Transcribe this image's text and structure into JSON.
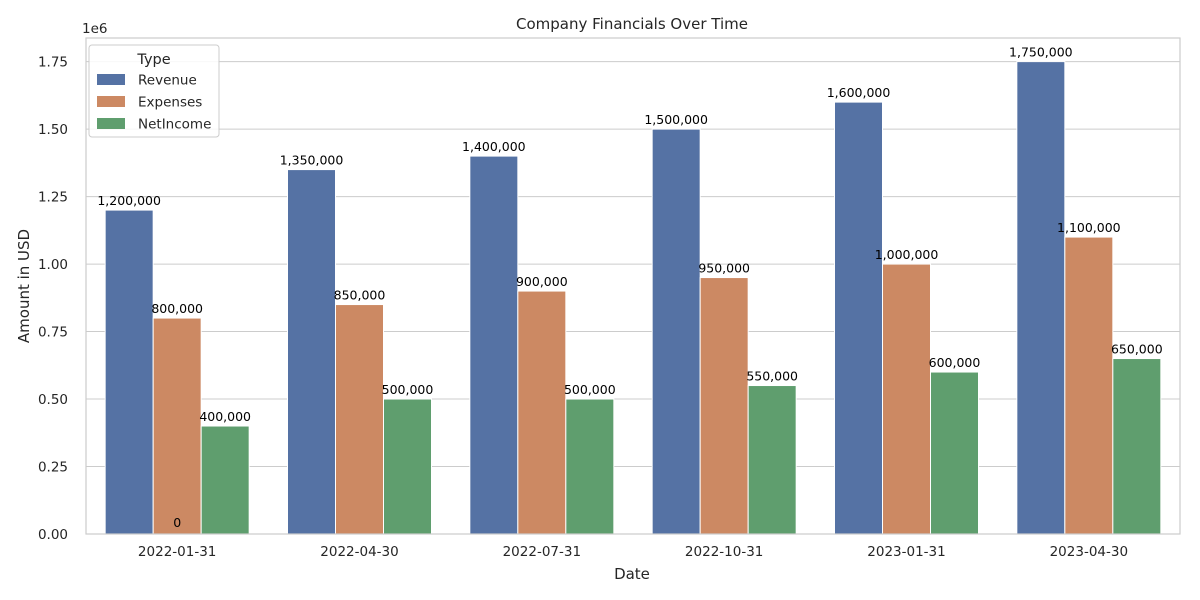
{
  "chart_data": {
    "type": "bar",
    "title": "Company Financials Over Time",
    "xlabel": "Date",
    "ylabel": "Amount in USD",
    "y_offset_label": "1e6",
    "ylim": [
      0,
      1837500
    ],
    "yticks": [
      0,
      250000,
      500000,
      750000,
      1000000,
      1250000,
      1500000,
      1750000
    ],
    "ytick_labels": [
      "0.00",
      "0.25",
      "0.50",
      "0.75",
      "1.00",
      "1.25",
      "1.50",
      "1.75"
    ],
    "grid": true,
    "legend_title": "Type",
    "legend_position": "top-left",
    "categories": [
      "2022-01-31",
      "2022-04-30",
      "2022-07-31",
      "2022-10-31",
      "2023-01-31",
      "2023-04-30"
    ],
    "series": [
      {
        "name": "Revenue",
        "color": "#5572a4",
        "values": [
          1200000,
          1350000,
          1400000,
          1500000,
          1600000,
          1750000
        ],
        "labels": [
          "1,200,000",
          "1,350,000",
          "1,400,000",
          "1,500,000",
          "1,600,000",
          "1,750,000"
        ]
      },
      {
        "name": "Expenses",
        "color": "#cc8963",
        "values": [
          800000,
          850000,
          900000,
          950000,
          1000000,
          1100000
        ],
        "labels": [
          "800,000",
          "850,000",
          "900,000",
          "950,000",
          "1,000,000",
          "1,100,000"
        ]
      },
      {
        "name": "NetIncome",
        "color": "#5f9e6e",
        "values": [
          400000,
          500000,
          500000,
          550000,
          600000,
          650000
        ],
        "labels": [
          "400,000",
          "500,000",
          "500,000",
          "550,000",
          "600,000",
          "650,000"
        ]
      }
    ],
    "annotations": [
      {
        "text": "0",
        "category": "2022-01-31"
      }
    ]
  }
}
